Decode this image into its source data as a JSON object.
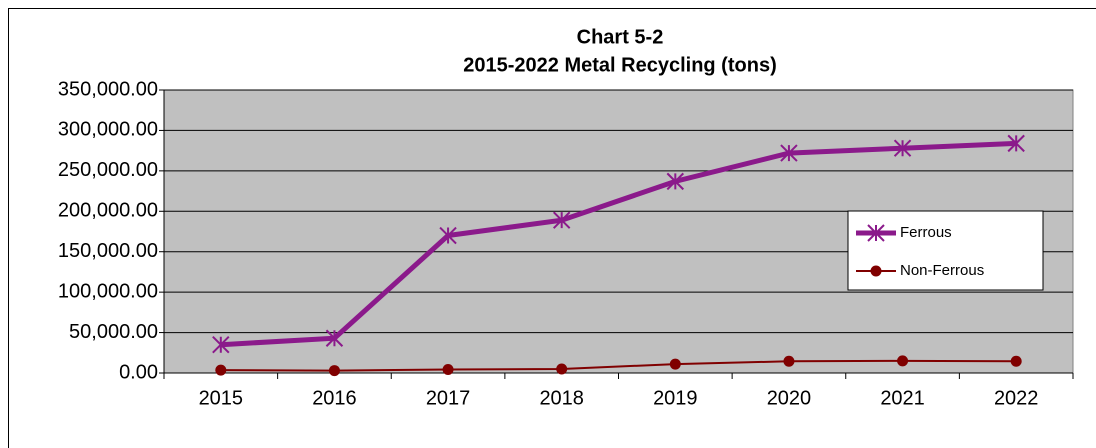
{
  "chart_data": {
    "type": "line",
    "title": "Chart 5-2",
    "subtitle": "2015-2022 Metal Recycling (tons)",
    "categories": [
      "2015",
      "2016",
      "2017",
      "2018",
      "2019",
      "2020",
      "2021",
      "2022"
    ],
    "series": [
      {
        "name": "Ferrous",
        "color": "#8b1a8b",
        "marker": "star",
        "values": [
          35000,
          43000,
          170000,
          189000,
          237000,
          272000,
          278000,
          284000
        ]
      },
      {
        "name": "Non-Ferrous",
        "color": "#800000",
        "marker": "circle",
        "values": [
          3500,
          3000,
          4300,
          5000,
          11000,
          14500,
          15000,
          14500
        ]
      }
    ],
    "ylim": [
      0,
      350000
    ],
    "yticks": [
      {
        "value": 0,
        "label": "0.00"
      },
      {
        "value": 50000,
        "label": "50,000.00"
      },
      {
        "value": 100000,
        "label": "100,000.00"
      },
      {
        "value": 150000,
        "label": "150,000.00"
      },
      {
        "value": 200000,
        "label": "200,000.00"
      },
      {
        "value": 250000,
        "label": "250,000.00"
      },
      {
        "value": 300000,
        "label": "300,000.00"
      },
      {
        "value": 350000,
        "label": "350,000.00"
      }
    ],
    "grid": true,
    "plot_background": "#c0c0c0",
    "legend_position": "right"
  }
}
